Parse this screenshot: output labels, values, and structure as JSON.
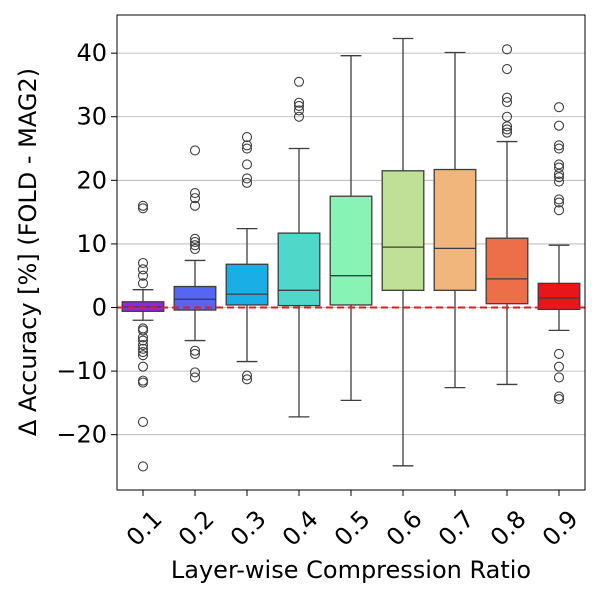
{
  "chart_data": {
    "type": "box",
    "xlabel": "Layer-wise Compression Ratio",
    "ylabel": "Δ Accuracy [%] (FOLD - MAG2)",
    "ylim": [
      -28.7,
      46.0
    ],
    "yticks": [
      -20,
      -10,
      0,
      10,
      20,
      30,
      40
    ],
    "ytick_labels": [
      "−20",
      "−10",
      "0",
      "10",
      "20",
      "30",
      "40"
    ],
    "grid": "y",
    "reference_line": {
      "y": 0,
      "color": "#e41a1c",
      "style": "dashed"
    },
    "categories": [
      "0.1",
      "0.2",
      "0.3",
      "0.4",
      "0.5",
      "0.6",
      "0.7",
      "0.8",
      "0.9"
    ],
    "boxes": [
      {
        "label": "0.1",
        "color": "#8a2be2",
        "q1": -0.6,
        "median": 0.1,
        "q3": 0.9,
        "whisker_low": -2.0,
        "whisker_high": 2.8,
        "outliers": [
          16.0,
          15.6,
          7.0,
          6.0,
          5.0,
          3.8,
          -3.3,
          -3.6,
          -4.7,
          -5.2,
          -5.9,
          -6.5,
          -7.0,
          -7.5,
          -9.3,
          -11.5,
          -11.8,
          -18.0,
          -25.0
        ]
      },
      {
        "label": "0.2",
        "color": "#5566f5",
        "q1": -0.4,
        "median": 1.3,
        "q3": 3.3,
        "whisker_low": -5.2,
        "whisker_high": 7.4,
        "outliers": [
          24.7,
          18.0,
          17.2,
          16.0,
          10.8,
          10.3,
          9.8,
          9.2,
          -6.8,
          -7.3,
          -10.2,
          -11.0
        ]
      },
      {
        "label": "0.3",
        "color": "#1aaee6",
        "q1": 0.4,
        "median": 2.1,
        "q3": 6.8,
        "whisker_low": -8.5,
        "whisker_high": 12.4,
        "outliers": [
          26.8,
          25.5,
          25.0,
          22.5,
          20.3,
          19.6,
          -10.7,
          -11.3
        ]
      },
      {
        "label": "0.4",
        "color": "#4dd8c9",
        "q1": 0.3,
        "median": 2.7,
        "q3": 11.7,
        "whisker_low": -17.2,
        "whisker_high": 25.0,
        "outliers": [
          35.5,
          32.2,
          31.7,
          31.0,
          30.0
        ]
      },
      {
        "label": "0.5",
        "color": "#87f4b4",
        "q1": 0.4,
        "median": 5.0,
        "q3": 17.5,
        "whisker_low": -14.6,
        "whisker_high": 39.6,
        "outliers": []
      },
      {
        "label": "0.6",
        "color": "#c0e095",
        "q1": 2.7,
        "median": 9.5,
        "q3": 21.5,
        "whisker_low": -24.9,
        "whisker_high": 42.3,
        "outliers": []
      },
      {
        "label": "0.7",
        "color": "#f0b67b",
        "q1": 2.7,
        "median": 9.3,
        "q3": 21.7,
        "whisker_low": -12.6,
        "whisker_high": 40.1,
        "outliers": []
      },
      {
        "label": "0.8",
        "color": "#ec6f4a",
        "q1": 0.6,
        "median": 4.5,
        "q3": 10.9,
        "whisker_low": -12.1,
        "whisker_high": 26.1,
        "outliers": [
          40.6,
          37.5,
          33.0,
          32.3,
          30.0,
          28.5,
          28.0,
          27.5
        ]
      },
      {
        "label": "0.9",
        "color": "#e8161b",
        "q1": -0.3,
        "median": 1.5,
        "q3": 3.8,
        "whisker_low": -3.6,
        "whisker_high": 9.8,
        "outliers": [
          31.5,
          28.6,
          25.5,
          25.0,
          22.5,
          22.0,
          21.0,
          20.5,
          19.8,
          17.0,
          16.5,
          15.3,
          -7.3,
          -9.3,
          -11.0,
          -14.0,
          -14.4
        ]
      }
    ]
  }
}
